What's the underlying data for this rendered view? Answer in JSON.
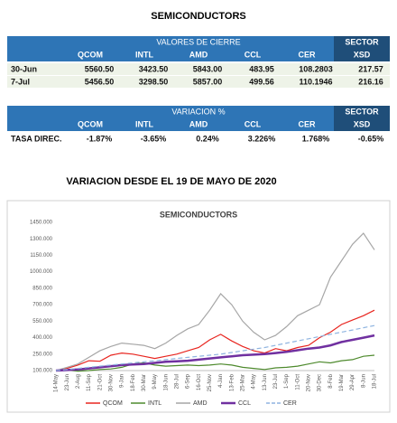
{
  "title": "SEMICONDUCTORS",
  "table1": {
    "header": "VALORES DE CIERRE",
    "sector": "SECTOR",
    "columns": [
      "QCOM",
      "INTL",
      "AMD",
      "CCL",
      "CER",
      "XSD"
    ],
    "rows": [
      [
        "30-Jun",
        "5560.50",
        "3423.50",
        "5843.00",
        "483.95",
        "108.2803",
        "217.57"
      ],
      [
        "7-Jul",
        "5456.50",
        "3298.50",
        "5857.00",
        "499.56",
        "110.1946",
        "216.16"
      ]
    ]
  },
  "table2": {
    "header": "VARIACION %",
    "sector": "SECTOR",
    "columns": [
      "QCOM",
      "INTL",
      "AMD",
      "CCL",
      "CER",
      "XSD"
    ],
    "rows": [
      [
        "TASA DIREC.",
        "-1.87%",
        "-3.65%",
        "0.24%",
        "3.226%",
        "1.768%",
        "-0.65%"
      ]
    ]
  },
  "subtitle": "VARIACION DESDE EL 19 DE MAYO DE 2020",
  "chart_data": {
    "type": "line",
    "title": "SEMICONDUCTORS",
    "categories": [
      "14-May",
      "23-Jun",
      "2-Aug",
      "11-Sep",
      "21-Oct",
      "30-Nov",
      "9-Jan",
      "18-Feb",
      "30-Mar",
      "9-May",
      "18-Jun",
      "28-Jul",
      "6-Sep",
      "16-Oct",
      "25-Nov",
      "4-Jan",
      "13-Feb",
      "25-Mar",
      "4-May",
      "13-Jun",
      "23-Jul",
      "1-Sep",
      "11-Oct",
      "20-Nov",
      "30-Dec",
      "8-Feb",
      "19-Mar",
      "29-Apr",
      "8-Jun",
      "18-Jul"
    ],
    "series": [
      {
        "name": "QCOM",
        "color": "#e8251f",
        "values": [
          100,
          120,
          150,
          190,
          185,
          240,
          260,
          250,
          230,
          210,
          230,
          250,
          280,
          310,
          380,
          430,
          370,
          320,
          280,
          260,
          300,
          280,
          310,
          330,
          400,
          450,
          520,
          560,
          600,
          650
        ]
      },
      {
        "name": "INTL",
        "color": "#4e8a2d",
        "values": [
          100,
          105,
          95,
          100,
          110,
          115,
          130,
          160,
          170,
          150,
          140,
          145,
          150,
          145,
          150,
          160,
          150,
          130,
          120,
          110,
          125,
          130,
          140,
          160,
          180,
          170,
          190,
          200,
          230,
          240
        ]
      },
      {
        "name": "AMD",
        "color": "#a6a6a6",
        "values": [
          100,
          130,
          160,
          220,
          280,
          320,
          350,
          340,
          330,
          300,
          350,
          420,
          480,
          520,
          650,
          800,
          700,
          550,
          450,
          380,
          420,
          500,
          600,
          650,
          700,
          950,
          1100,
          1250,
          1350,
          1200
        ]
      },
      {
        "name": "CCL",
        "color": "#7030a0",
        "values": [
          100,
          105,
          110,
          120,
          130,
          140,
          150,
          155,
          160,
          170,
          180,
          185,
          190,
          200,
          210,
          220,
          230,
          240,
          245,
          250,
          260,
          270,
          285,
          300,
          310,
          330,
          360,
          380,
          400,
          420
        ]
      },
      {
        "name": "CER",
        "color": "#8fb4e0",
        "dashed": true,
        "values": [
          100,
          110,
          120,
          130,
          140,
          150,
          160,
          170,
          180,
          190,
          200,
          210,
          220,
          230,
          240,
          250,
          265,
          280,
          295,
          310,
          330,
          350,
          370,
          390,
          410,
          430,
          450,
          470,
          490,
          510
        ]
      }
    ],
    "ylim": [
      100,
      1450
    ],
    "yticks": [
      {
        "value": 100,
        "label": "100.000"
      },
      {
        "value": 250,
        "label": "250.000"
      },
      {
        "value": 400,
        "label": "400.000"
      },
      {
        "value": 550,
        "label": "550.000"
      },
      {
        "value": 700,
        "label": "700.000"
      },
      {
        "value": 850,
        "label": "850.000"
      },
      {
        "value": 1000,
        "label": "1000.000"
      },
      {
        "value": 1150,
        "label": "1150.000"
      },
      {
        "value": 1300,
        "label": "1300.000"
      },
      {
        "value": 1450,
        "label": "1450.000"
      }
    ],
    "legend": "bottom"
  }
}
